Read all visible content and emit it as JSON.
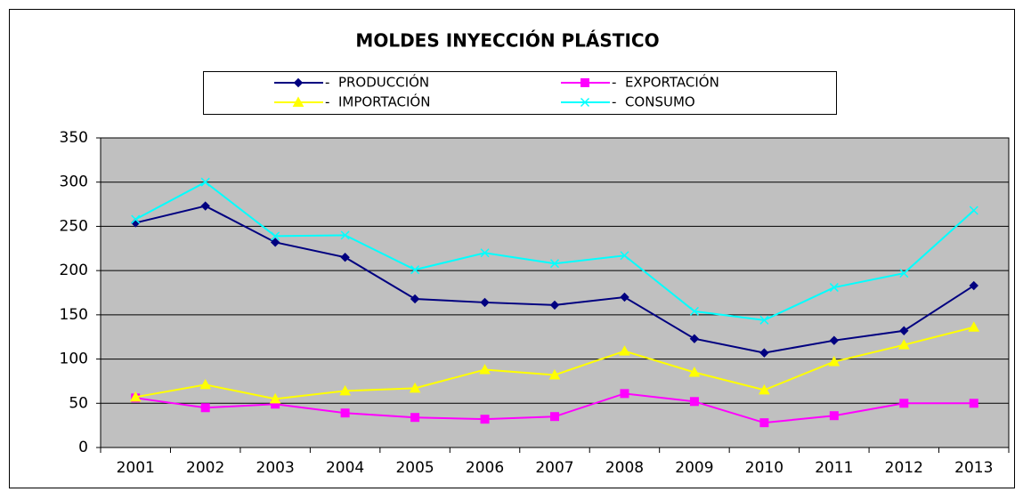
{
  "chart_data": {
    "type": "line",
    "title": "MOLDES INYECCIÓN PLÁSTICO",
    "categories": [
      "2001",
      "2002",
      "2003",
      "2004",
      "2005",
      "2006",
      "2007",
      "2008",
      "2009",
      "2010",
      "2011",
      "2012",
      "2013"
    ],
    "series": [
      {
        "name": "-  PRODUCCIÓN",
        "color": "#000080",
        "marker": "diamond",
        "values": [
          254,
          273,
          232,
          215,
          168,
          164,
          161,
          170,
          123,
          107,
          121,
          132,
          183
        ]
      },
      {
        "name": "-  EXPORTACIÓN",
        "color": "#ff00ff",
        "marker": "square",
        "values": [
          56,
          45,
          49,
          39,
          34,
          32,
          35,
          61,
          52,
          28,
          36,
          50,
          50
        ]
      },
      {
        "name": "-  IMPORTACIÓN",
        "color": "#ffff00",
        "marker": "triangle",
        "values": [
          57,
          71,
          55,
          64,
          67,
          88,
          82,
          109,
          85,
          65,
          97,
          116,
          136
        ]
      },
      {
        "name": "-  CONSUMO",
        "color": "#00ffff",
        "marker": "x",
        "values": [
          258,
          300,
          239,
          240,
          201,
          220,
          208,
          217,
          154,
          144,
          181,
          197,
          268
        ]
      }
    ],
    "ylim": [
      0,
      350
    ],
    "yticks": [
      0,
      50,
      100,
      150,
      200,
      250,
      300,
      350
    ],
    "grid": true,
    "plot_background": "#c0c0c0"
  }
}
